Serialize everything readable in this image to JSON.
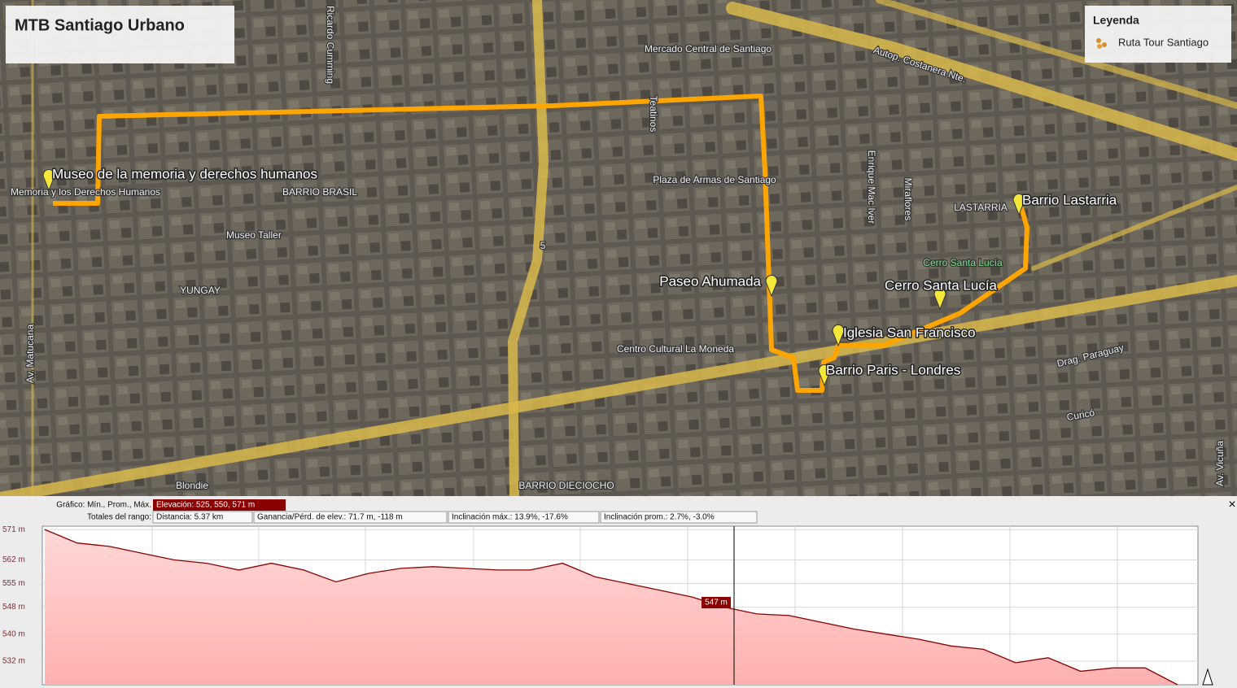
{
  "title": "MTB Santiago Urbano",
  "legend": {
    "title": "Leyenda",
    "items": [
      "Ruta Tour Santiago"
    ]
  },
  "placemarks": [
    {
      "label": "Museo de la memoria y derechos humanos"
    },
    {
      "label": "Paseo Ahumada"
    },
    {
      "label": "Cerro Santa Lucía"
    },
    {
      "label": "Iglesia San Francisco"
    },
    {
      "label": "Barrio Paris - Londres"
    },
    {
      "label": "Barrio Lastarria"
    }
  ],
  "map_labels": [
    "Ricardo Cumming",
    "Mercado Central de Santiago",
    "Autop. Costanera Nte.",
    "Teatinos",
    "Plaza de Armas de Santiago",
    "Enrique Mac Iver",
    "Miraflores",
    "LASTARRIA",
    "Cerro Santa Lucía",
    "BARRIO BRASIL",
    "Memoria y los Derechos Humanos",
    "Museo Taller",
    "YUNGAY",
    "Av. Matucana",
    "Centro Cultural La Moneda",
    "Drag. Paraguay",
    "Curicó",
    "BARRIO DIECIOCHO",
    "Blondie",
    "Av. Vicuña",
    "5"
  ],
  "profile": {
    "stats": [
      {
        "label": "Gráfico: Mín., Prom., Máx.",
        "value": "Elevación: 525, 550, 571 m"
      }
    ],
    "totals": {
      "label": "Totales del rango:",
      "items": [
        "Distancia: 5.37 km",
        "Ganancia/Pérd. de elev.: 71.7 m, -118 m",
        "Inclinación máx.: 13.9%, -17.6%",
        "Inclinación prom.: 2.7%, -3.0%"
      ]
    },
    "cursor_label": "547 m",
    "close": "×"
  },
  "chart_data": {
    "type": "line",
    "color": "#8b0000",
    "values": [
      571,
      567,
      566,
      564,
      562,
      561,
      559,
      561,
      559,
      555.5,
      558,
      559.5,
      560,
      559.5,
      559,
      559,
      561,
      557,
      555,
      553,
      551,
      548,
      546,
      545.5,
      543.5,
      541.5,
      540,
      538.5,
      536.5,
      535.5,
      531.5,
      533,
      529,
      530,
      530,
      525
    ],
    "ylim": [
      525,
      572
    ],
    "yticks": [
      {
        "value": 532,
        "label": "532 m"
      },
      {
        "value": 540,
        "label": "540 m"
      },
      {
        "value": 548,
        "label": "548 m"
      },
      {
        "value": 555,
        "label": "555 m"
      },
      {
        "value": 562,
        "label": "562 m"
      },
      {
        "value": 571,
        "label": "571 m"
      }
    ],
    "grid": true
  }
}
